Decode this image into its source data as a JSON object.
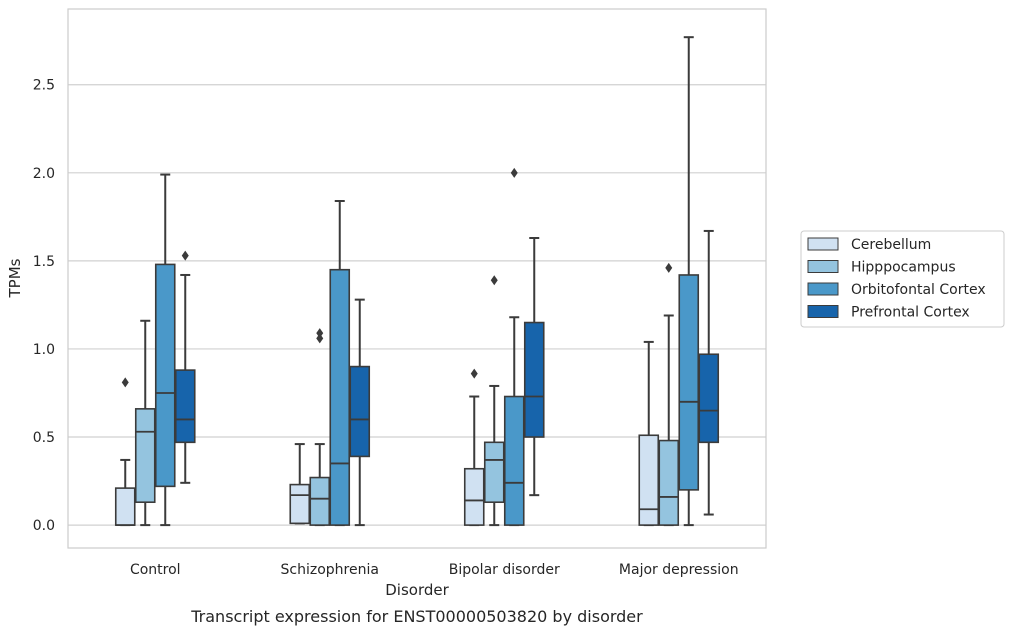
{
  "chart_data": {
    "type": "boxplot",
    "title": "",
    "caption": "Transcript expression for ENST00000503820 by disorder",
    "xlabel": "Disorder",
    "ylabel": "TPMs",
    "ylim": [
      -0.13,
      2.93
    ],
    "yticks": [
      0.0,
      0.5,
      1.0,
      1.5,
      2.0,
      2.5
    ],
    "ytick_labels": [
      "0.0",
      "0.5",
      "1.0",
      "1.5",
      "2.0",
      "2.5"
    ],
    "grid": "horizontal",
    "legend_position": "right",
    "categories": [
      "Control",
      "Schizophrenia",
      "Bipolar disorder",
      "Major depression"
    ],
    "series": [
      {
        "name": "Cerebellum",
        "color": "#d0e1f2",
        "boxes": [
          {
            "min": 0.0,
            "q1": 0.0,
            "median": 0.0,
            "q3": 0.21,
            "max": 0.37,
            "outliers": [
              0.81
            ]
          },
          {
            "min": 0.01,
            "q1": 0.01,
            "median": 0.17,
            "q3": 0.23,
            "max": 0.46,
            "outliers": []
          },
          {
            "min": 0.0,
            "q1": 0.0,
            "median": 0.14,
            "q3": 0.32,
            "max": 0.73,
            "outliers": [
              0.86
            ]
          },
          {
            "min": 0.0,
            "q1": 0.0,
            "median": 0.09,
            "q3": 0.51,
            "max": 1.04,
            "outliers": []
          }
        ]
      },
      {
        "name": "Hipppocampus",
        "color": "#94c4df",
        "boxes": [
          {
            "min": 0.0,
            "q1": 0.13,
            "median": 0.53,
            "q3": 0.66,
            "max": 1.16,
            "outliers": []
          },
          {
            "min": 0.0,
            "q1": 0.0,
            "median": 0.15,
            "q3": 0.27,
            "max": 0.46,
            "outliers": [
              1.06,
              1.09
            ]
          },
          {
            "min": 0.0,
            "q1": 0.13,
            "median": 0.37,
            "q3": 0.47,
            "max": 0.79,
            "outliers": [
              1.39
            ]
          },
          {
            "min": 0.0,
            "q1": 0.0,
            "median": 0.16,
            "q3": 0.48,
            "max": 1.19,
            "outliers": [
              1.46
            ]
          }
        ]
      },
      {
        "name": "Orbitofontal Cortex",
        "color": "#4a98c9",
        "boxes": [
          {
            "min": 0.0,
            "q1": 0.22,
            "median": 0.75,
            "q3": 1.48,
            "max": 1.99,
            "outliers": []
          },
          {
            "min": 0.0,
            "q1": 0.0,
            "median": 0.35,
            "q3": 1.45,
            "max": 1.84,
            "outliers": []
          },
          {
            "min": 0.0,
            "q1": 0.0,
            "median": 0.24,
            "q3": 0.73,
            "max": 1.18,
            "outliers": [
              2.0
            ]
          },
          {
            "min": 0.0,
            "q1": 0.2,
            "median": 0.7,
            "q3": 1.42,
            "max": 2.77,
            "outliers": []
          }
        ]
      },
      {
        "name": "Prefrontal Cortex",
        "color": "#1764ab",
        "boxes": [
          {
            "min": 0.24,
            "q1": 0.47,
            "median": 0.6,
            "q3": 0.88,
            "max": 1.42,
            "outliers": [
              1.53
            ]
          },
          {
            "min": 0.0,
            "q1": 0.39,
            "median": 0.6,
            "q3": 0.9,
            "max": 1.28,
            "outliers": []
          },
          {
            "min": 0.17,
            "q1": 0.5,
            "median": 0.73,
            "q3": 1.15,
            "max": 1.63,
            "outliers": []
          },
          {
            "min": 0.06,
            "q1": 0.47,
            "median": 0.65,
            "q3": 0.97,
            "max": 1.67,
            "outliers": []
          }
        ]
      }
    ]
  }
}
